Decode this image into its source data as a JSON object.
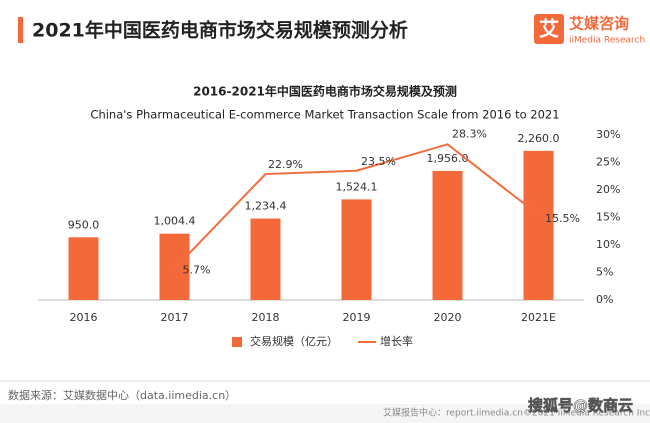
{
  "header": {
    "title": "2021年中国医药电商市场交易规模预测分析",
    "logo_cn": "艾媒咨询",
    "logo_en": "iiMedia Research"
  },
  "chart_data": {
    "type": "bar_line",
    "title": "2016-2021年中国医药电商市场交易规模及预测",
    "subtitle": "China's Pharmaceutical E-commerce Market Transaction Scale from 2016 to 2021",
    "categories": [
      "2016",
      "2017",
      "2018",
      "2019",
      "2020",
      "2021E"
    ],
    "series": [
      {
        "name": "交易规模（亿元）",
        "type": "bar",
        "color": "#f4693a",
        "values": [
          950.0,
          1004.4,
          1234.4,
          1524.1,
          1956.0,
          2260.0
        ],
        "value_labels": [
          "950.0",
          "1,004.4",
          "1,234.4",
          "1,524.1",
          "1,956.0",
          "2,260.0"
        ]
      },
      {
        "name": "增长率",
        "type": "line",
        "axis": "y2",
        "color": "#f26d3d",
        "values": [
          null,
          5.7,
          22.9,
          23.5,
          28.3,
          15.5
        ],
        "value_labels": [
          null,
          "5.7%",
          "22.9%",
          "23.5%",
          "28.3%",
          "15.5%"
        ]
      }
    ],
    "ylim": [
      0,
      2500
    ],
    "y2lim": [
      0,
      30
    ],
    "y2ticks": [
      {
        "value": 0,
        "label": "0%"
      },
      {
        "value": 5,
        "label": "5%"
      },
      {
        "value": 10,
        "label": "10%"
      },
      {
        "value": 15,
        "label": "15%"
      },
      {
        "value": 20,
        "label": "20%"
      },
      {
        "value": 25,
        "label": "25%"
      },
      {
        "value": 30,
        "label": "30%"
      }
    ],
    "grid": false,
    "legend": "bottom"
  },
  "footer": {
    "source": "数据来源：艾媒数据中心（data.iimedia.cn）",
    "report": "艾媒报告中心：report.iimedia.cn",
    "copyright": "©2021  iiMedia Research  Inc",
    "watermark": "搜狐号@数商云"
  }
}
